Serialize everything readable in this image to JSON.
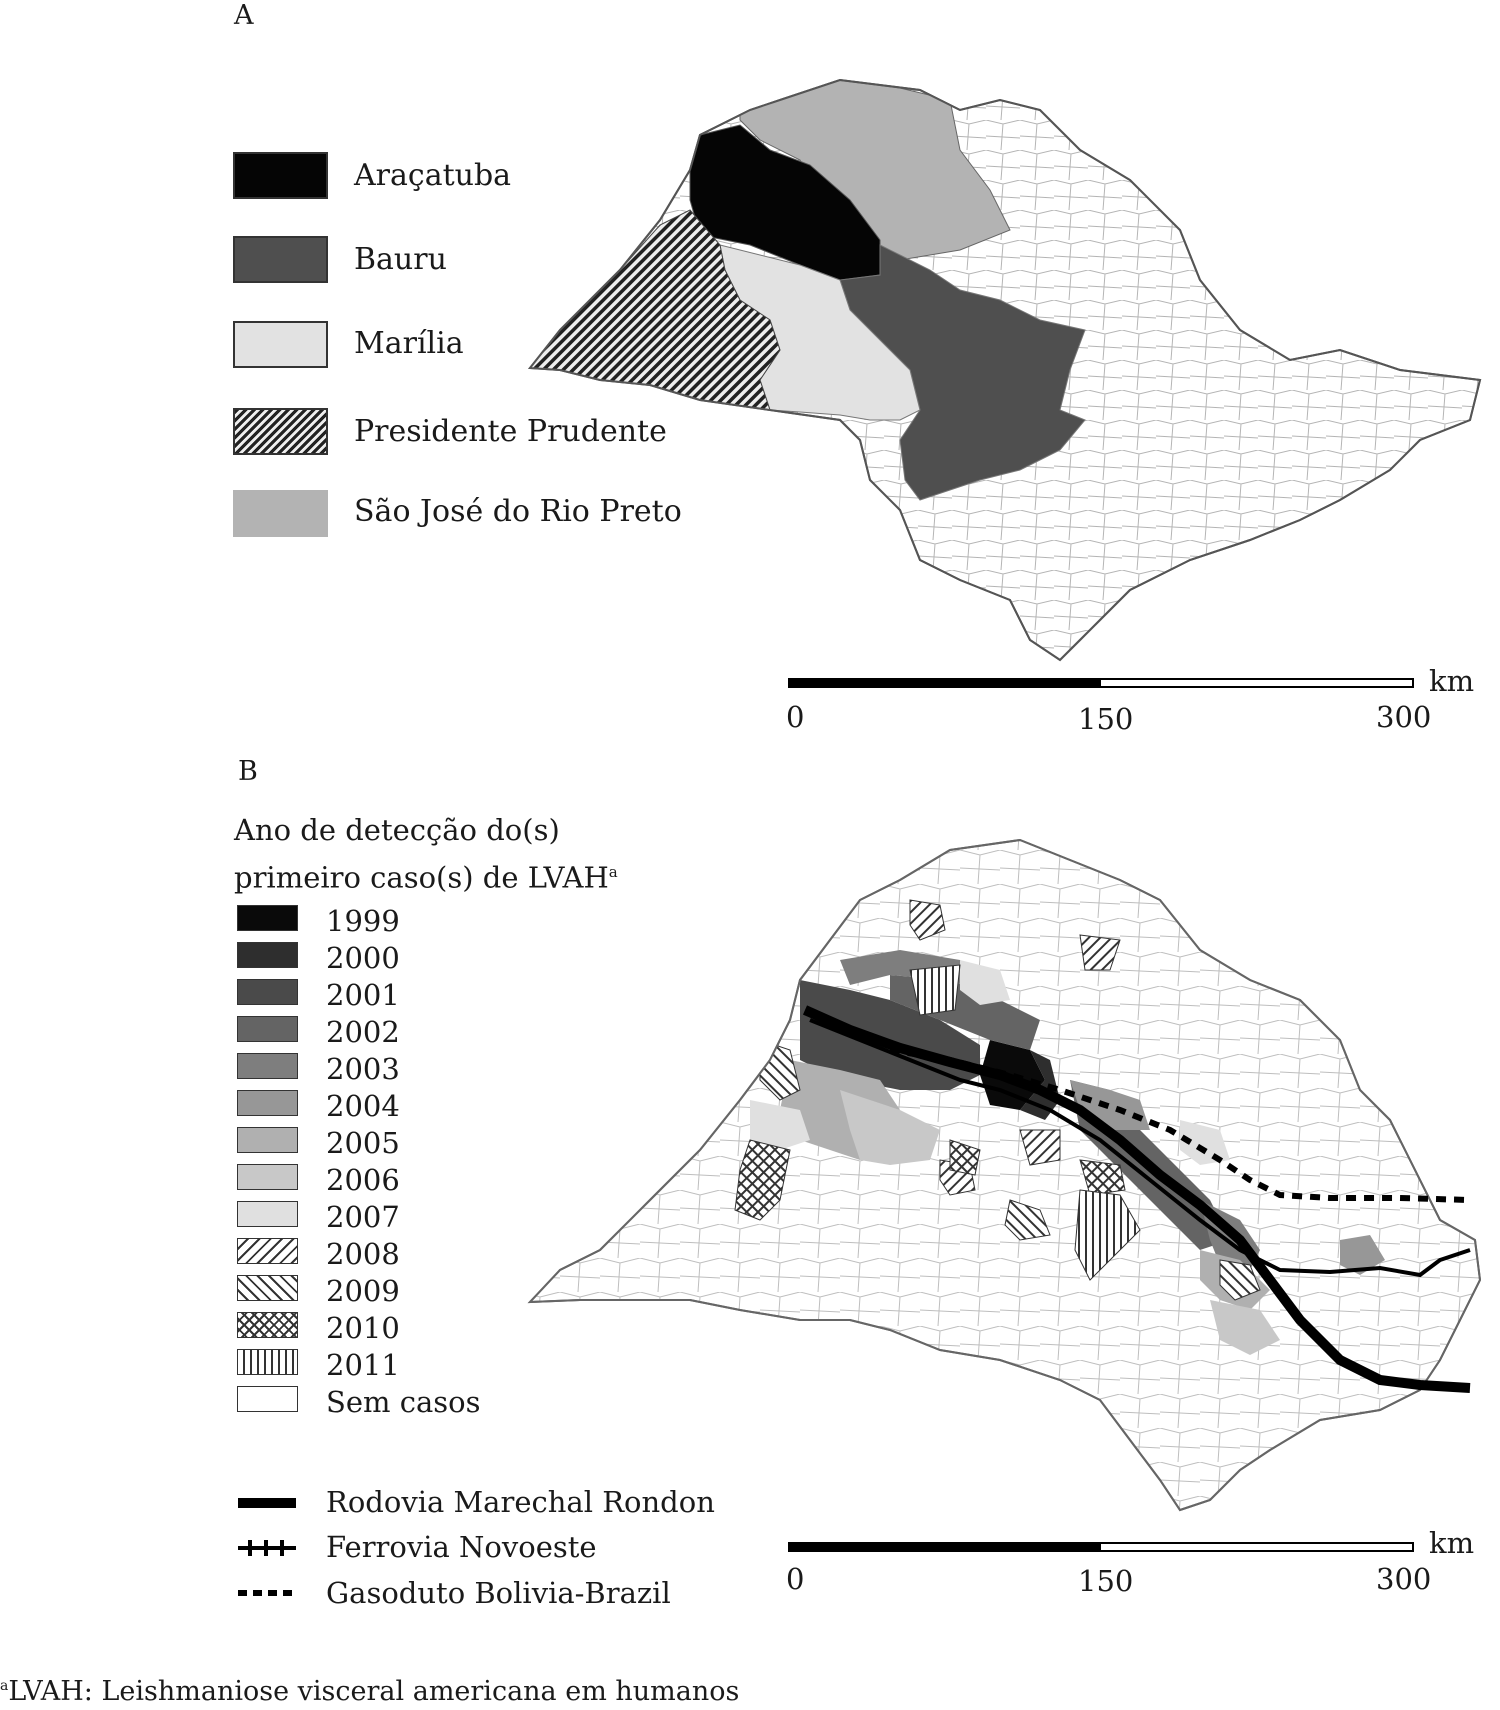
{
  "panel_a": {
    "letter": "A",
    "legend": [
      {
        "label": "Araçatuba",
        "fill": "#050505"
      },
      {
        "label": "Bauru",
        "fill": "#4f4f4f"
      },
      {
        "label": "Marília",
        "fill": "#e2e2e2"
      },
      {
        "label": "Presidente Prudente",
        "fill": "hatch-dense"
      },
      {
        "label": "São José do Rio Preto",
        "fill": "#b3b3b3"
      }
    ],
    "scale": {
      "unit": "km",
      "ticks": [
        "0",
        "150",
        "300"
      ]
    }
  },
  "panel_b": {
    "letter": "B",
    "legend_title_line1": "Ano de detecção do(s)",
    "legend_title_line2": "primeiro caso(s) de LVAH",
    "legend_title_sup": "a",
    "legend": [
      {
        "label": "1999",
        "fill": "#0a0a0a"
      },
      {
        "label": "2000",
        "fill": "#2e2e2e"
      },
      {
        "label": "2001",
        "fill": "#4a4a4a"
      },
      {
        "label": "2002",
        "fill": "#646464"
      },
      {
        "label": "2003",
        "fill": "#7e7e7e"
      },
      {
        "label": "2004",
        "fill": "#979797"
      },
      {
        "label": "2005",
        "fill": "#b0b0b0"
      },
      {
        "label": "2006",
        "fill": "#c8c8c8"
      },
      {
        "label": "2007",
        "fill": "#e0e0e0"
      },
      {
        "label": "2008",
        "fill": "hatch-fwd"
      },
      {
        "label": "2009",
        "fill": "hatch-back"
      },
      {
        "label": "2010",
        "fill": "hatch-cross"
      },
      {
        "label": "2011",
        "fill": "hatch-vert"
      },
      {
        "label": "Sem casos",
        "fill": "#ffffff"
      }
    ],
    "lines": [
      {
        "label": "Rodovia Marechal Rondon",
        "style": "thick"
      },
      {
        "label": "Ferrovia Novoeste",
        "style": "rail"
      },
      {
        "label": "Gasoduto Bolivia-Brazil",
        "style": "dashed"
      }
    ],
    "scale": {
      "unit": "km",
      "ticks": [
        "0",
        "150",
        "300"
      ]
    }
  },
  "footnote_sup": "a",
  "footnote": "LVAH: Leishmaniose visceral americana em humanos"
}
